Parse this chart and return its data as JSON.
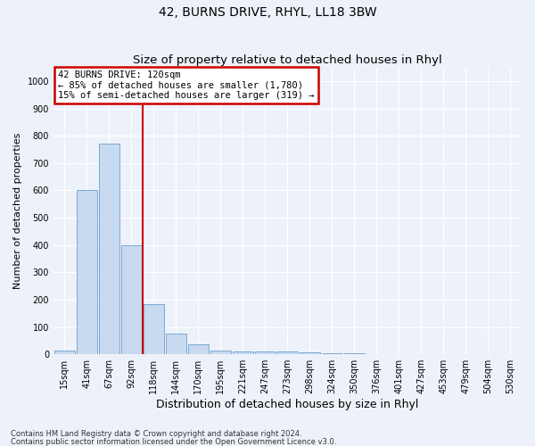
{
  "title": "42, BURNS DRIVE, RHYL, LL18 3BW",
  "subtitle": "Size of property relative to detached houses in Rhyl",
  "xlabel": "Distribution of detached houses by size in Rhyl",
  "ylabel": "Number of detached properties",
  "footnote1": "Contains HM Land Registry data © Crown copyright and database right 2024.",
  "footnote2": "Contains public sector information licensed under the Open Government Licence v3.0.",
  "bar_labels": [
    "15sqm",
    "41sqm",
    "67sqm",
    "92sqm",
    "118sqm",
    "144sqm",
    "170sqm",
    "195sqm",
    "221sqm",
    "247sqm",
    "273sqm",
    "298sqm",
    "324sqm",
    "350sqm",
    "376sqm",
    "401sqm",
    "427sqm",
    "453sqm",
    "479sqm",
    "504sqm",
    "530sqm"
  ],
  "bar_values": [
    15,
    600,
    770,
    400,
    185,
    75,
    35,
    15,
    12,
    10,
    12,
    7,
    5,
    3,
    2,
    2,
    1,
    1,
    0,
    0,
    0
  ],
  "bar_color": "#c8daf0",
  "bar_edge_color": "#6b9ecc",
  "vline_x": 3.5,
  "vline_color": "#cc0000",
  "annotation_line1": "42 BURNS DRIVE: 120sqm",
  "annotation_line2": "← 85% of detached houses are smaller (1,780)",
  "annotation_line3": "15% of semi-detached houses are larger (319) →",
  "annotation_box_facecolor": "#ffffff",
  "annotation_box_edgecolor": "#cc0000",
  "ylim": [
    0,
    1050
  ],
  "yticks": [
    0,
    100,
    200,
    300,
    400,
    500,
    600,
    700,
    800,
    900,
    1000
  ],
  "background_color": "#edf2fa",
  "grid_color": "#ffffff",
  "title_fontsize": 10,
  "subtitle_fontsize": 9.5,
  "tick_fontsize": 7,
  "xlabel_fontsize": 9,
  "ylabel_fontsize": 8
}
